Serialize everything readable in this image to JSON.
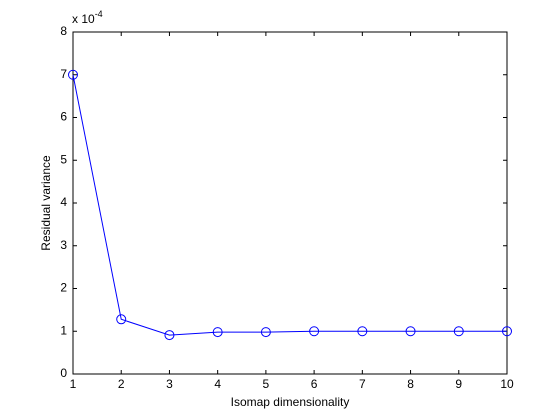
{
  "chart_data": {
    "type": "line",
    "xlabel": "Isomap dimensionality",
    "ylabel": "Residual variance",
    "y_multiplier": "x 10",
    "y_multiplier_exponent": "-4",
    "x": [
      1,
      2,
      3,
      4,
      5,
      6,
      7,
      8,
      9,
      10
    ],
    "series": [
      {
        "color": "#0000ff",
        "marker": "circle",
        "values": [
          7.0,
          1.28,
          0.91,
          0.98,
          0.98,
          1.0,
          1.0,
          1.0,
          1.0,
          1.0
        ]
      }
    ],
    "xlim": [
      1,
      10
    ],
    "xticks": [
      1,
      2,
      3,
      4,
      5,
      6,
      7,
      8,
      9,
      10
    ],
    "ylim": [
      0,
      8
    ],
    "yticks": [
      0,
      1,
      2,
      3,
      4,
      5,
      6,
      7,
      8
    ],
    "grid": false
  }
}
